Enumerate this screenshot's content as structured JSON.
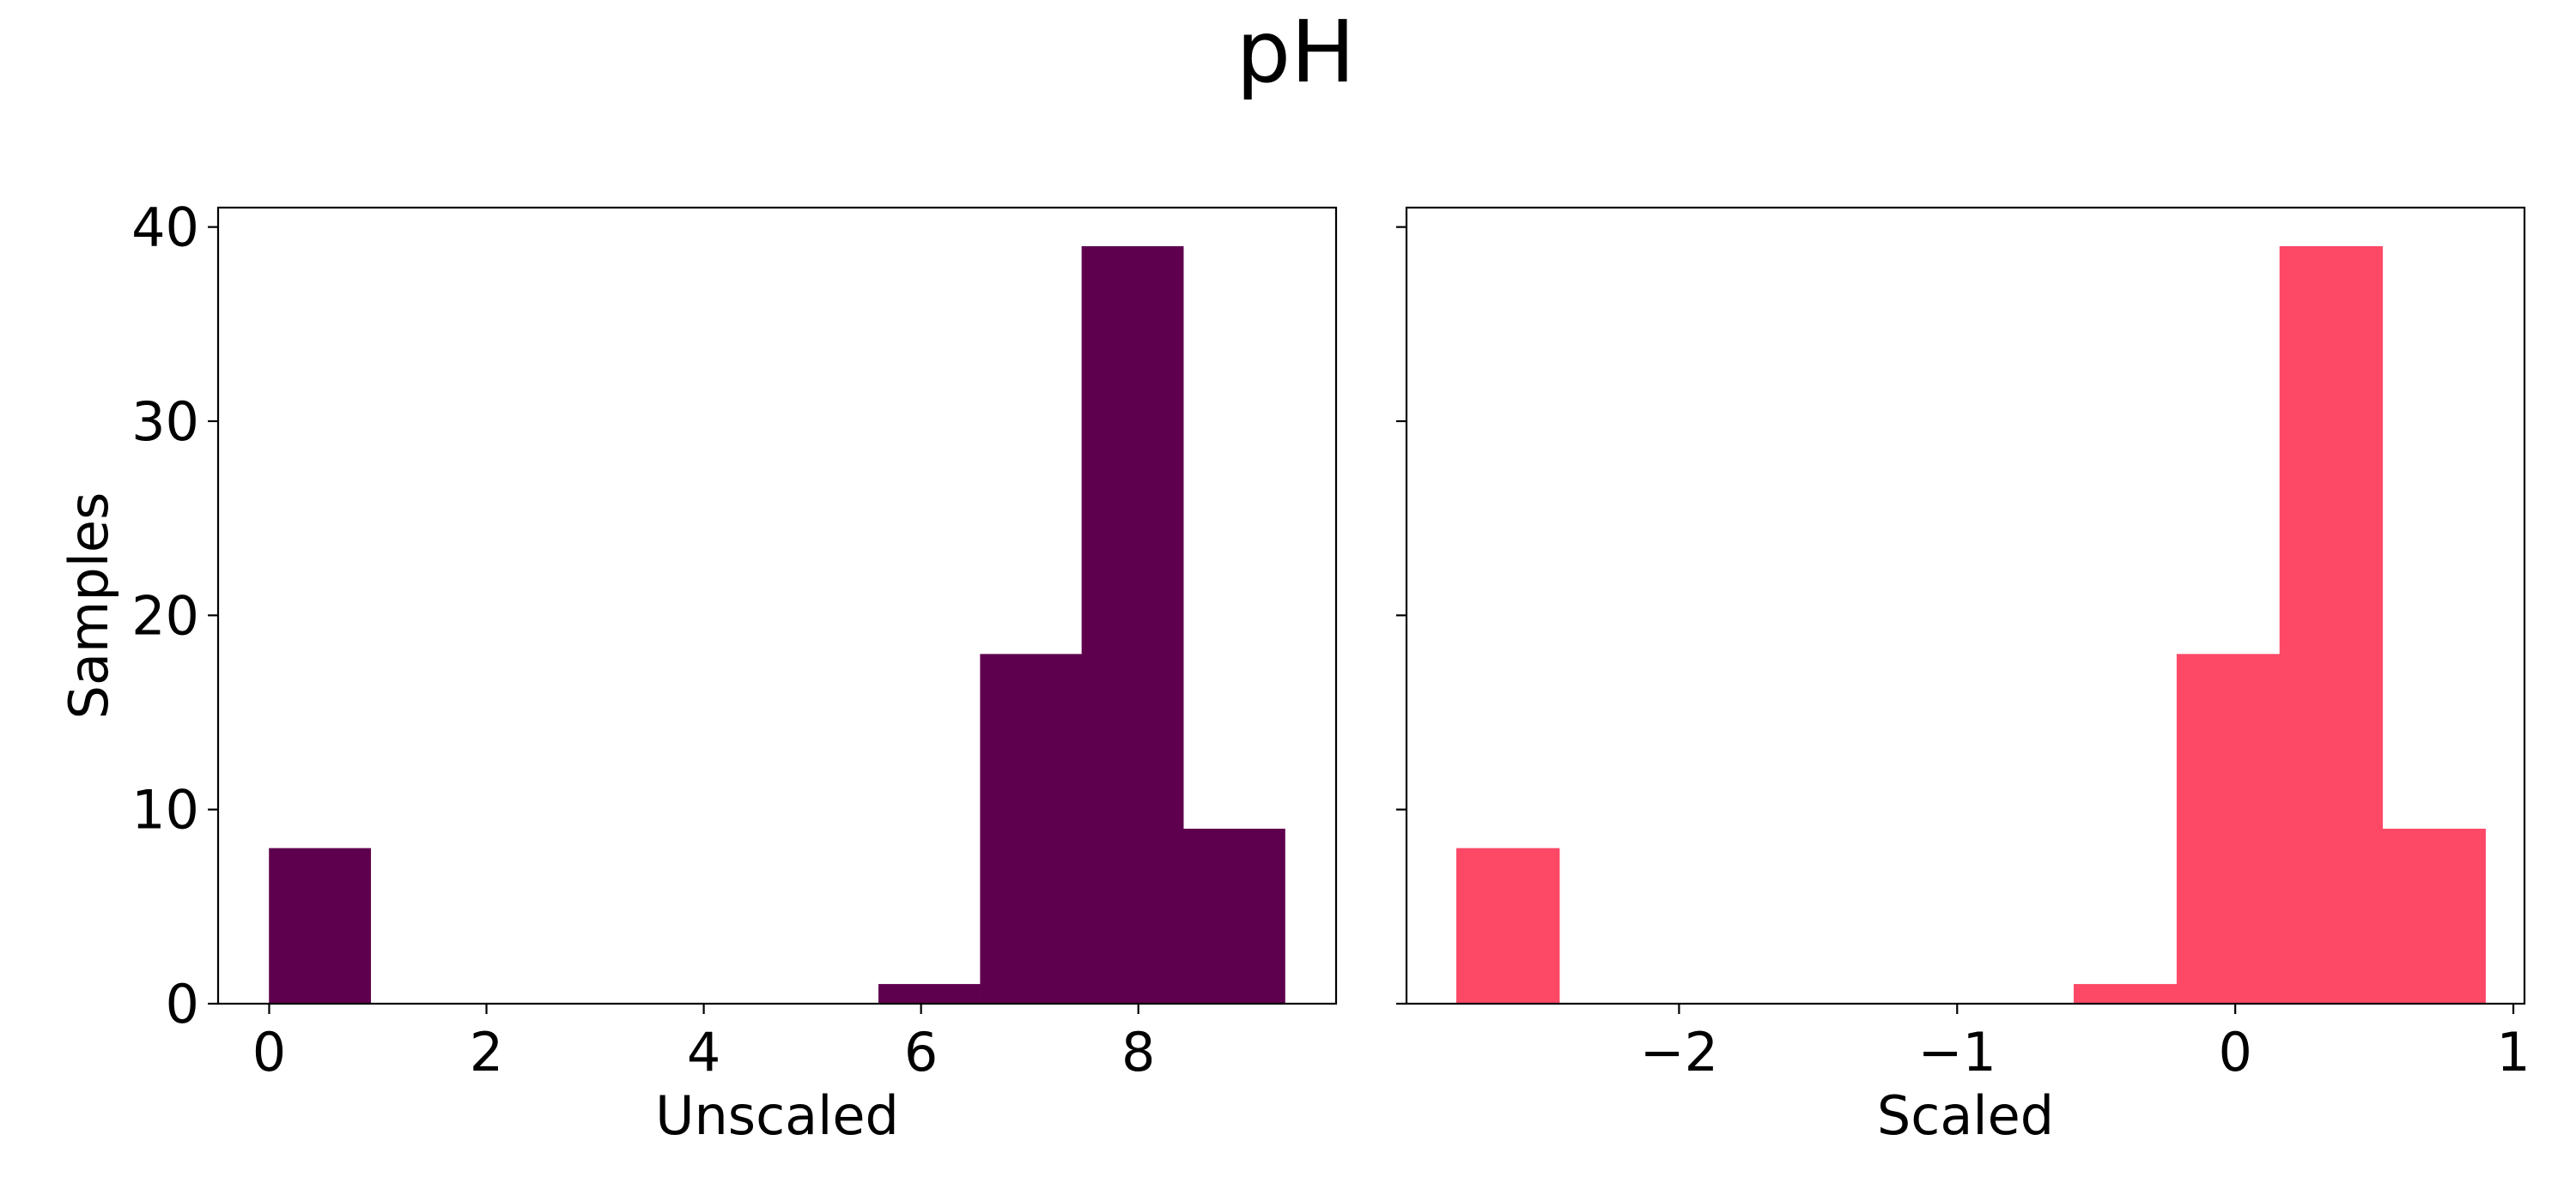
{
  "figure": {
    "title": "pH"
  },
  "chart_data": [
    {
      "type": "bar",
      "histogram": true,
      "xlabel": "Unscaled",
      "ylabel": "Samples",
      "xlim": [
        -0.47,
        9.82
      ],
      "ylim": [
        0,
        41
      ],
      "xticks": [
        0,
        2,
        4,
        6,
        8
      ],
      "xtick_labels": [
        "0",
        "2",
        "4",
        "6",
        "8"
      ],
      "yticks": [
        0,
        10,
        20,
        30,
        40
      ],
      "ytick_labels": [
        "0",
        "10",
        "20",
        "30",
        "40"
      ],
      "color": "#5f004e",
      "bins": [
        0.0,
        0.935,
        1.87,
        2.805,
        3.74,
        4.675,
        5.61,
        6.545,
        7.48,
        8.415,
        9.35
      ],
      "counts": [
        8,
        0,
        0,
        0,
        0,
        0,
        1,
        18,
        39,
        9
      ],
      "grid": false,
      "legend": "none"
    },
    {
      "type": "bar",
      "histogram": true,
      "xlabel": "Scaled",
      "ylabel": "",
      "xlim": [
        -2.98,
        1.04
      ],
      "ylim": [
        0,
        41
      ],
      "xticks": [
        -2,
        -1,
        0,
        1
      ],
      "xtick_labels": [
        "−2",
        "−1",
        "0",
        "1"
      ],
      "yticks": [
        0,
        10,
        20,
        30,
        40
      ],
      "ytick_labels": [],
      "color": "#fd4966",
      "bins": [
        -2.8,
        -2.43,
        -2.06,
        -1.69,
        -1.32,
        -0.95,
        -0.58,
        -0.21,
        0.16,
        0.53,
        0.9
      ],
      "counts": [
        8,
        0,
        0,
        0,
        0,
        0,
        1,
        18,
        39,
        9
      ],
      "grid": false,
      "legend": "none"
    }
  ]
}
